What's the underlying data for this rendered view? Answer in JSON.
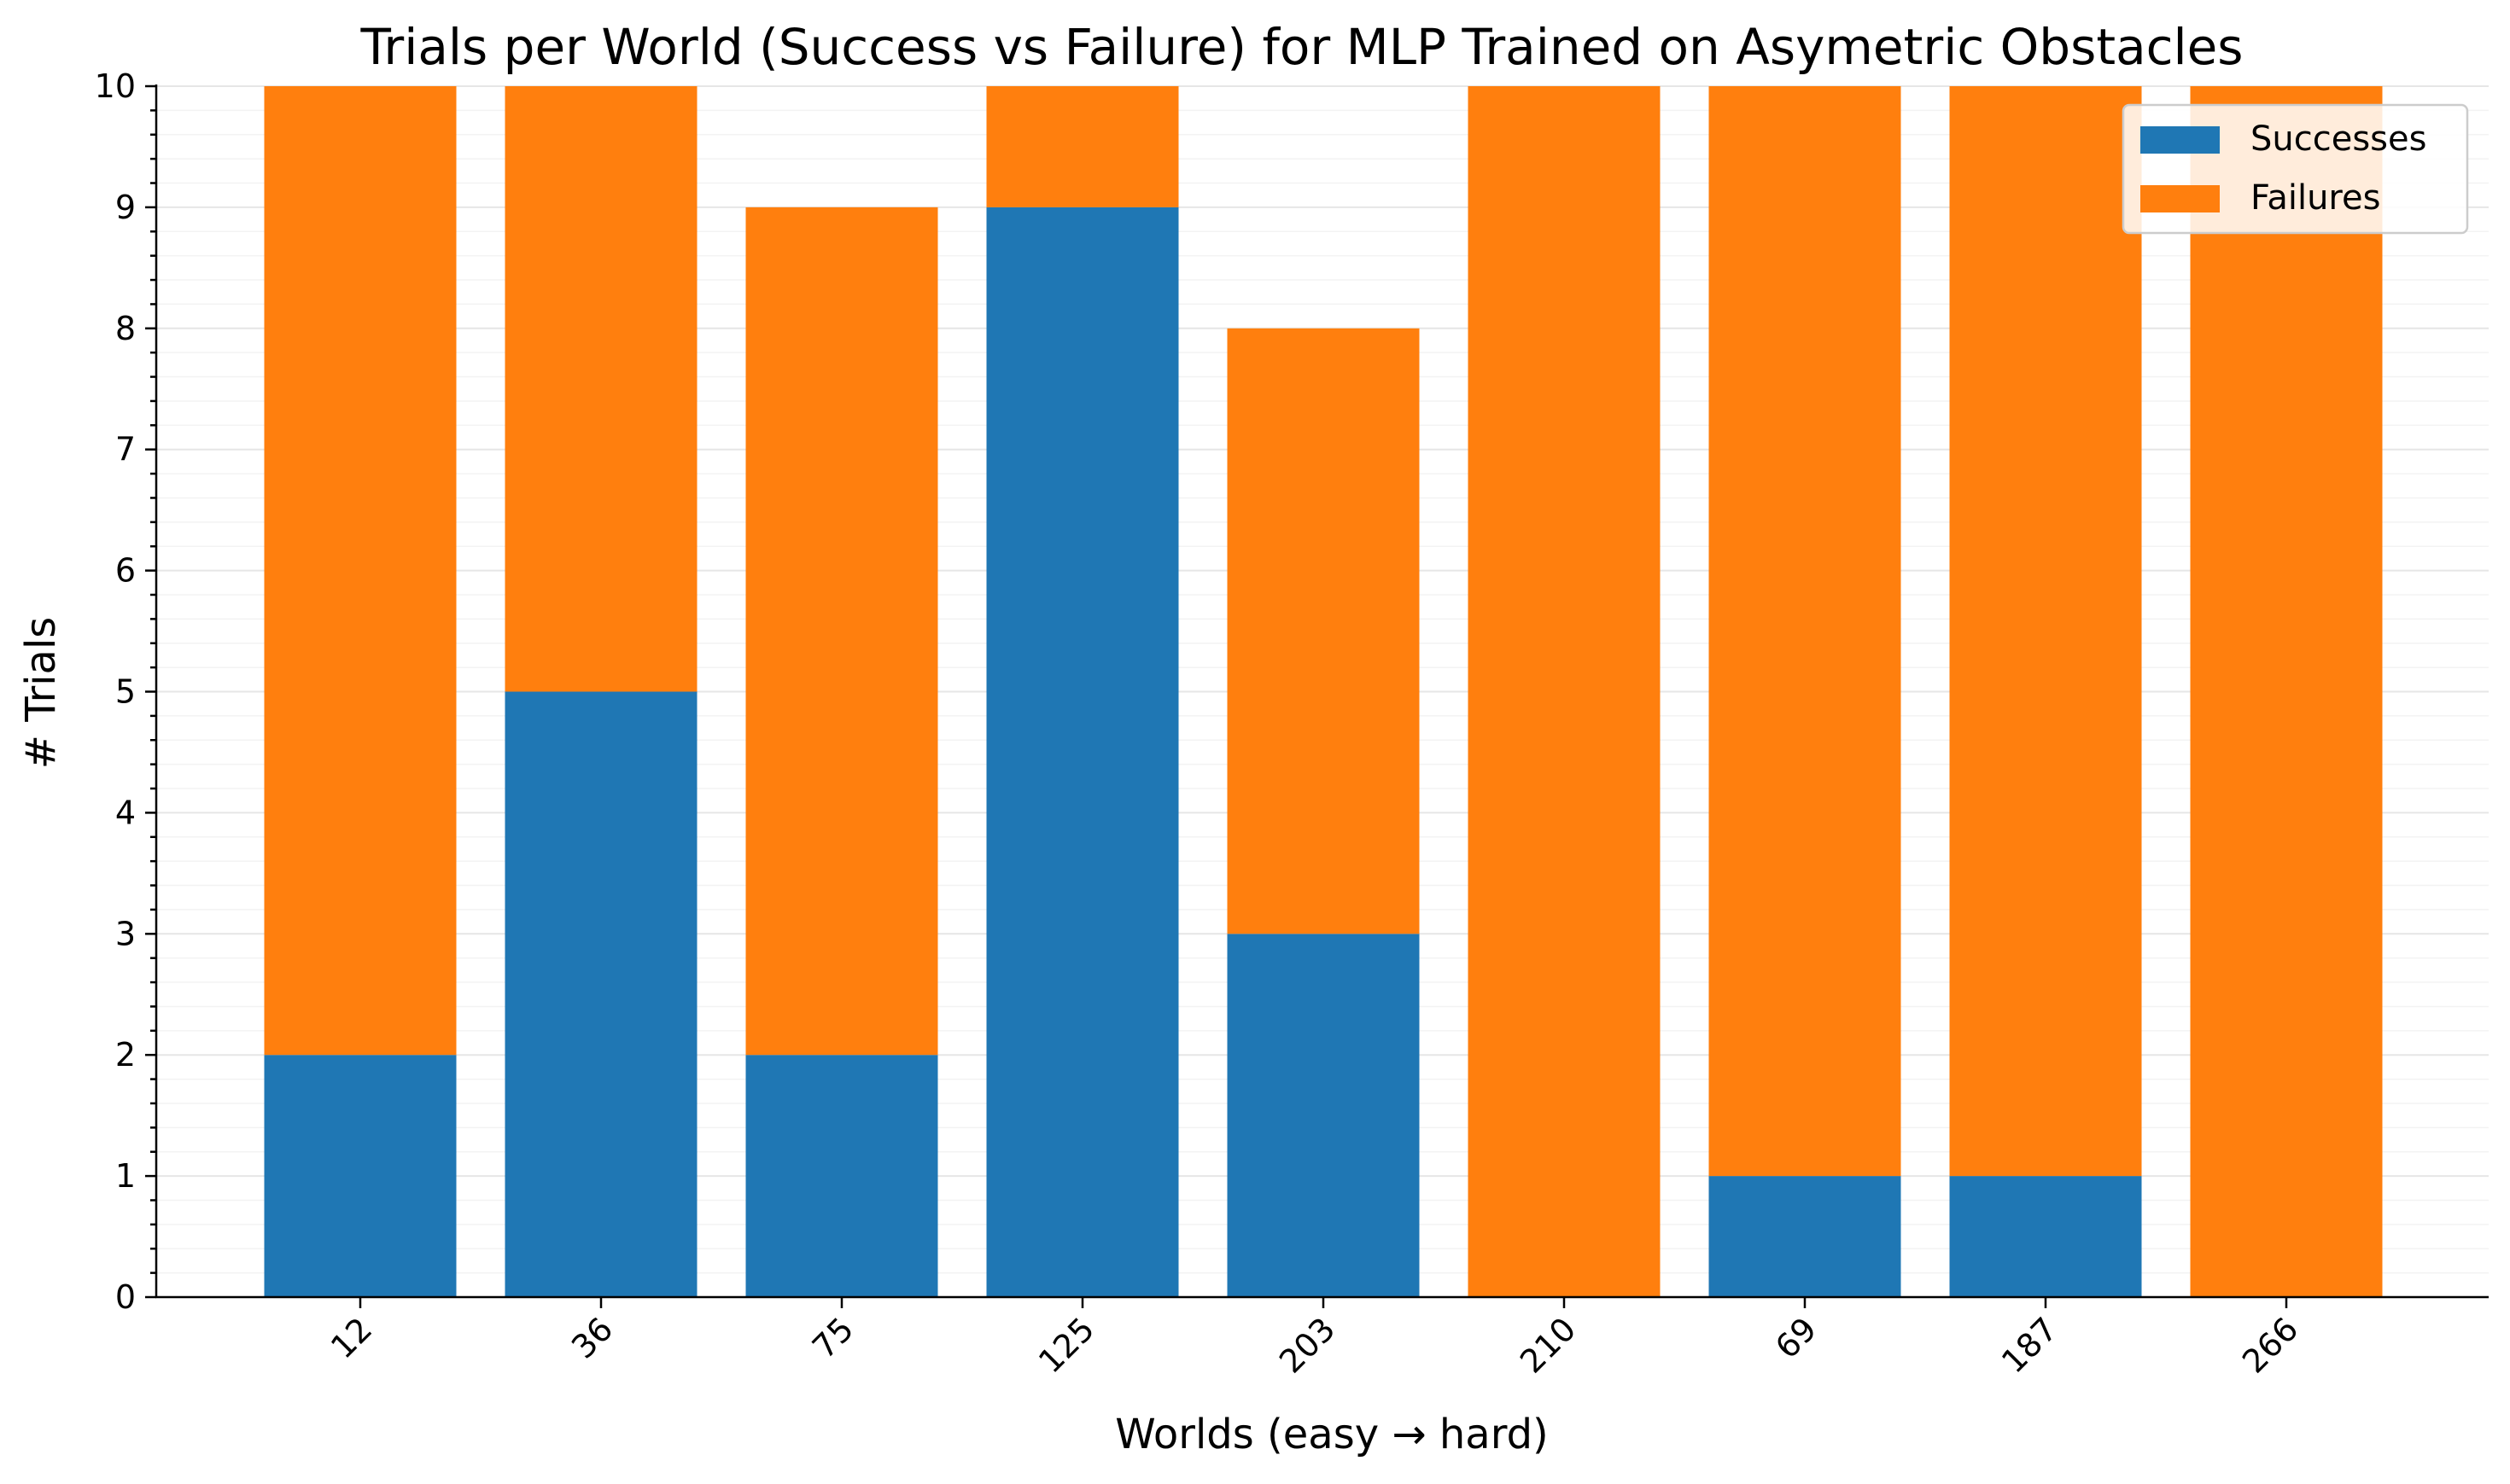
{
  "chart_data": {
    "type": "bar",
    "stacked": true,
    "title": "Trials per World (Success vs Failure) for MLP Trained on Asymetric Obstacles",
    "xlabel": "Worlds (easy → hard)",
    "ylabel": "# Trials",
    "categories": [
      "12",
      "36",
      "75",
      "125",
      "203",
      "210",
      "69",
      "187",
      "266"
    ],
    "series": [
      {
        "name": "Successes",
        "color": "#1f77b4",
        "values": [
          2,
          5,
          2,
          9,
          3,
          0,
          1,
          1,
          0
        ]
      },
      {
        "name": "Failures",
        "color": "#ff7f0e",
        "values": [
          8,
          5,
          7,
          1,
          5,
          10,
          9,
          9,
          10
        ]
      }
    ],
    "ylim": [
      0,
      10
    ],
    "yticks": [
      0,
      1,
      2,
      3,
      4,
      5,
      6,
      7,
      8,
      9,
      10
    ],
    "y_minor_step": 0.2,
    "grid": true,
    "legend_position": "top-right",
    "x_tick_rotation": -45
  }
}
